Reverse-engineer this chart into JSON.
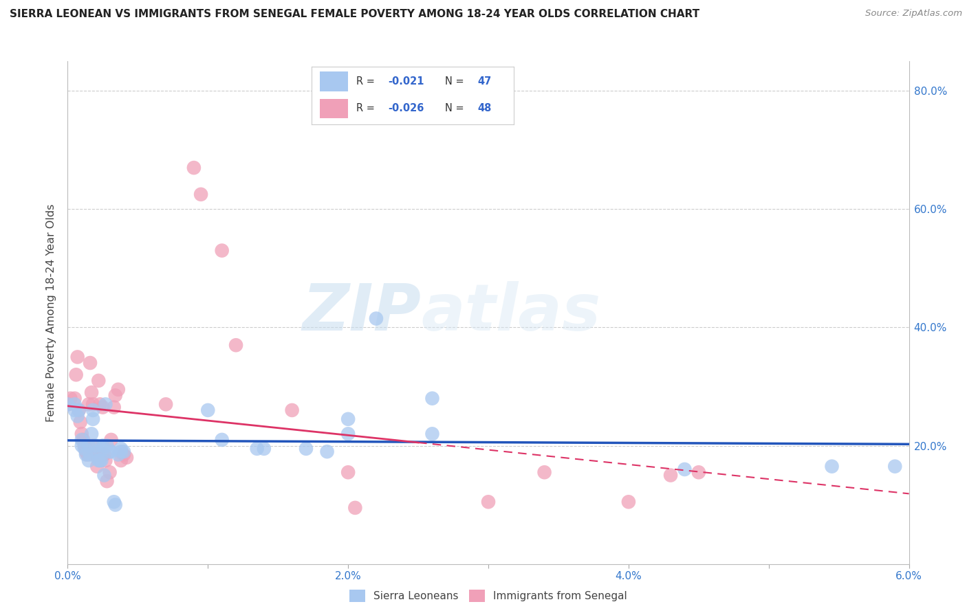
{
  "title": "SIERRA LEONEAN VS IMMIGRANTS FROM SENEGAL FEMALE POVERTY AMONG 18-24 YEAR OLDS CORRELATION CHART",
  "source": "Source: ZipAtlas.com",
  "ylabel": "Female Poverty Among 18-24 Year Olds",
  "xlim": [
    0.0,
    0.06
  ],
  "ylim": [
    0.0,
    0.85
  ],
  "xticks": [
    0.0,
    0.01,
    0.02,
    0.03,
    0.04,
    0.05,
    0.06
  ],
  "yticks": [
    0.0,
    0.2,
    0.4,
    0.6,
    0.8
  ],
  "ytick_labels": [
    "",
    "20.0%",
    "40.0%",
    "60.0%",
    "80.0%"
  ],
  "xtick_labels": [
    "0.0%",
    "",
    "2.0%",
    "",
    "4.0%",
    "",
    "6.0%"
  ],
  "legend_r1": "-0.021",
  "legend_n1": "47",
  "legend_r2": "-0.026",
  "legend_n2": "48",
  "color_blue": "#A8C8F0",
  "color_pink": "#F0A0B8",
  "color_blue_line": "#2255BB",
  "color_pink_line": "#DD3366",
  "watermark_zip": "ZIP",
  "watermark_atlas": "atlas",
  "sierra_x": [
    0.0,
    0.0005,
    0.0005,
    0.0007,
    0.0008,
    0.001,
    0.001,
    0.0012,
    0.0013,
    0.0015,
    0.0015,
    0.0016,
    0.0017,
    0.0018,
    0.0018,
    0.002,
    0.0021,
    0.0022,
    0.0023,
    0.0024,
    0.0025,
    0.0025,
    0.0026,
    0.0027,
    0.0028,
    0.003,
    0.0031,
    0.0033,
    0.0034,
    0.0036,
    0.0038,
    0.0038,
    0.004,
    0.01,
    0.011,
    0.0135,
    0.014,
    0.017,
    0.0185,
    0.02,
    0.02,
    0.022,
    0.026,
    0.026,
    0.044,
    0.0545,
    0.059
  ],
  "sierra_y": [
    0.27,
    0.27,
    0.26,
    0.25,
    0.26,
    0.2,
    0.21,
    0.195,
    0.185,
    0.175,
    0.2,
    0.185,
    0.22,
    0.245,
    0.26,
    0.2,
    0.19,
    0.175,
    0.175,
    0.175,
    0.195,
    0.2,
    0.15,
    0.27,
    0.2,
    0.19,
    0.19,
    0.105,
    0.1,
    0.185,
    0.19,
    0.195,
    0.19,
    0.26,
    0.21,
    0.195,
    0.195,
    0.195,
    0.19,
    0.245,
    0.22,
    0.415,
    0.22,
    0.28,
    0.16,
    0.165,
    0.165
  ],
  "senegal_x": [
    0.0,
    0.0,
    0.0002,
    0.0005,
    0.0006,
    0.0007,
    0.0008,
    0.0009,
    0.001,
    0.0011,
    0.0012,
    0.0013,
    0.0014,
    0.0015,
    0.0016,
    0.0017,
    0.0018,
    0.0018,
    0.0019,
    0.002,
    0.0021,
    0.0022,
    0.0023,
    0.0025,
    0.0026,
    0.0027,
    0.0028,
    0.003,
    0.0031,
    0.0033,
    0.0034,
    0.0036,
    0.0038,
    0.004,
    0.0042,
    0.007,
    0.009,
    0.0095,
    0.011,
    0.012,
    0.016,
    0.02,
    0.0205,
    0.03,
    0.034,
    0.04,
    0.043,
    0.045
  ],
  "senegal_y": [
    0.27,
    0.27,
    0.28,
    0.28,
    0.32,
    0.35,
    0.26,
    0.24,
    0.22,
    0.21,
    0.2,
    0.19,
    0.185,
    0.27,
    0.34,
    0.29,
    0.27,
    0.2,
    0.185,
    0.185,
    0.165,
    0.31,
    0.27,
    0.265,
    0.185,
    0.175,
    0.14,
    0.155,
    0.21,
    0.265,
    0.285,
    0.295,
    0.175,
    0.185,
    0.18,
    0.27,
    0.67,
    0.625,
    0.53,
    0.37,
    0.26,
    0.155,
    0.095,
    0.105,
    0.155,
    0.105,
    0.15,
    0.155
  ]
}
